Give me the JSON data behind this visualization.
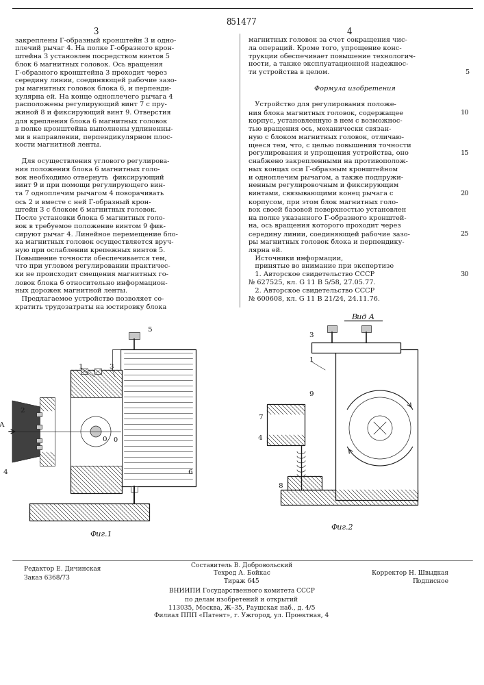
{
  "patent_number": "851477",
  "page_left": "3",
  "page_right": "4",
  "bg_color": "#ffffff",
  "text_color": "#1a1a1a",
  "col_left_lines": [
    "закреплены Г-образный кронштейн 3 и одно-",
    "плечий рычаг 4. На полке Г-образного крон-",
    "штейна 3 установлен посредством винтов 5",
    "блок 6 магнитных головок. Ось вращения",
    "Г-образного кронштейна 3 проходит через",
    "середину линии, соединяющей рабочие зазо-",
    "ры магнитных головок блока 6, и перпенди-",
    "кулярна ей. На конце одноплечего рычага 4",
    "расположены регулирующий винт 7 с пру-",
    "жиной 8 и фиксирующий винт 9. Отверстия",
    "для крепления блока 6 магнитных головок",
    "в полке кронштейна выполнены удлиненны-",
    "ми в направлении, перпендикулярном плос-",
    "кости магнитной ленты.",
    "",
    "   Для осуществления углового регулирова-",
    "ния положения блока 6 магнитных голо-",
    "вок необходимо отвернуть  фиксирующий",
    "винт 9 и при помощи регулирующего вин-",
    "та 7 одноплечим рычагом 4 поворачивать",
    "ось 2 и вместе с ней Г-образный крон-",
    "штейн 3 с блоком 6 магнитных головок.",
    "После установки блока 6 магнитных голо-",
    "вок в требуемое положение винтом 9 фик-",
    "сируют рычаг 4. Линейное перемещение бло-",
    "ка магнитных головок осуществляется вруч-",
    "ную при ослаблении крепежных винтов 5.",
    "Повышение точности обеспечивается тем,",
    "что при угловом регулировании практичес-",
    "ки не происходит смещения магнитных го-",
    "ловок блока 6 относительно информацион-",
    "ных дорожек магнитной ленты.",
    "   Предлагаемое устройство позволяет со-",
    "кратить трудозатраты на юстировку блока"
  ],
  "col_right_lines": [
    "магнитных головок за счет сокращения чис-",
    "ла операций. Кроме того, упрощение конс-",
    "трукции обеспечивает повышение технологич-",
    "ности, а также эксплуатационной надежнос-",
    "ти устройства в целом.",
    "",
    "        Формула изобретения",
    "",
    "   Устройство для регулирования положе-",
    "ния блока магнитных головок, содержащее",
    "корпус, установленную в нем с возможнос-",
    "тью вращения ось, механически связан-",
    "ную с блоком магнитных головок, отличаю-",
    "щееся тем, что, с целью повышения точности",
    "регулирования и упрощения устройства, оно",
    "снабжено закрепленными на противополож-",
    "ных концах оси Г-образным кронштейном",
    "и одноплечим рычагом, а также подпружи-",
    "ненным регулировочным и фиксирующим",
    "винтами, связывающими конец рычага с",
    "корпусом, при этом блок магнитных голо-",
    "вок своей базовой поверхностью установлен",
    "на полке указанного Г-образного кронштей-",
    "на, ось вращения которого проходит через",
    "середину линии, соединяющей рабочие зазо-",
    "ры магнитных головок блока и перпендику-",
    "лярна ей.",
    "   Источники информации,",
    "   принятые во внимание при экспертизе",
    "   1. Авторское свидетельство СССР",
    "№ 627525, кл. G 11 B 5/58, 27.05.77.",
    "   2. Авторское свидетельство СССР",
    "№ 600608, кл. G 11 B 21/24, 24.11.76."
  ],
  "line_num_rows": [
    4,
    9,
    14,
    19,
    24,
    29
  ],
  "line_num_vals": [
    "5",
    "10",
    "15",
    "20",
    "25",
    "30"
  ],
  "fig1_caption": "Фиг.1",
  "fig2_caption": "Фиг.2",
  "vida_label": "Вид А",
  "footer_col1_line1": "Редактор Е. Дичинская",
  "footer_col1_line2": "Заказ 6368/73",
  "footer_col2_line0": "Составитель В. Добровольский",
  "footer_col2_line1": "Техред А. Бойкас",
  "footer_col2_line2": "Тираж 645",
  "footer_col3_line1": "Корректор Н. Швыдкая",
  "footer_col3_line2": "Подписное",
  "footer_vniip1": "ВНИИПИ Государственного комитета СССР",
  "footer_vniip2": "по делам изобретений и открытий",
  "footer_addr1": "113035, Москва, Ж–35, Раушская наб., д. 4/5",
  "footer_addr2": "Филиал ППП «Патент», г. Ужгород, ул. Проектная, 4"
}
